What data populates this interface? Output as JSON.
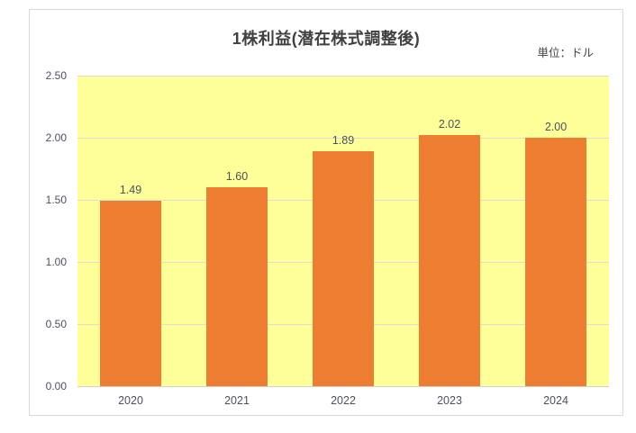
{
  "chart": {
    "title": "1株利益(潜在株式調整後)",
    "unit_label": "単位：ドル",
    "colors": {
      "bar": "#ed7d31",
      "plot_background": "#ffff99",
      "gridline": "#dbdbdb",
      "frame_border": "#d9d9d9",
      "title_text": "#404040",
      "tick_text": "#4a5160",
      "page_background": "#ffffff"
    }
  },
  "chart_data": {
    "type": "bar",
    "title": "1株利益(潜在株式調整後)",
    "subtitle": "",
    "unit": "単位：ドル",
    "categories": [
      "2020",
      "2021",
      "2022",
      "2023",
      "2024"
    ],
    "values": [
      1.49,
      1.6,
      1.89,
      2.02,
      2.0
    ],
    "value_labels": [
      "1.49",
      "1.60",
      "1.89",
      "2.02",
      "2.00"
    ],
    "xlabel": "",
    "ylabel": "",
    "ylim": [
      0,
      2.5
    ],
    "yticks": [
      "2.50",
      "2.00",
      "1.50",
      "1.00",
      "0.50",
      "0.00"
    ],
    "ytick_values": [
      2.5,
      2.0,
      1.5,
      1.0,
      0.5,
      0.0
    ],
    "grid": true,
    "legend_position": "none",
    "bar_color": "#ed7d31",
    "plot_background": "#ffff99"
  }
}
